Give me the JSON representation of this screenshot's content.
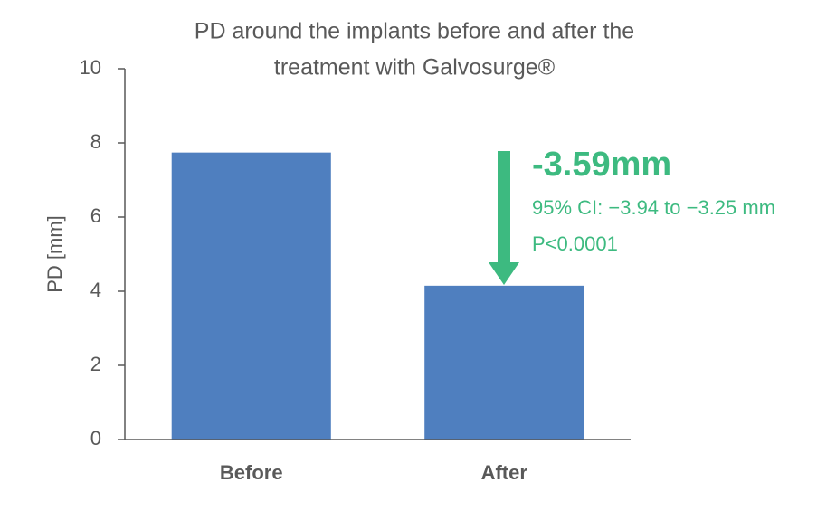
{
  "chart_data": {
    "type": "bar",
    "title": [
      "PD around the implants before and after the",
      "treatment with Galvosurge®"
    ],
    "y_label": "PD [mm]",
    "categories": [
      "Before",
      "After"
    ],
    "values": [
      7.74,
      4.15
    ],
    "color": "#4f7fbf",
    "ylim": [
      0,
      10
    ],
    "yticks": [
      0,
      2,
      4,
      6,
      8,
      10
    ],
    "grid": false,
    "annotations": [
      "-3.59mm",
      "95% CI: −3.94 to −3.25 mm",
      "P<0.0001"
    ],
    "annotation_color": "#3dba80"
  }
}
